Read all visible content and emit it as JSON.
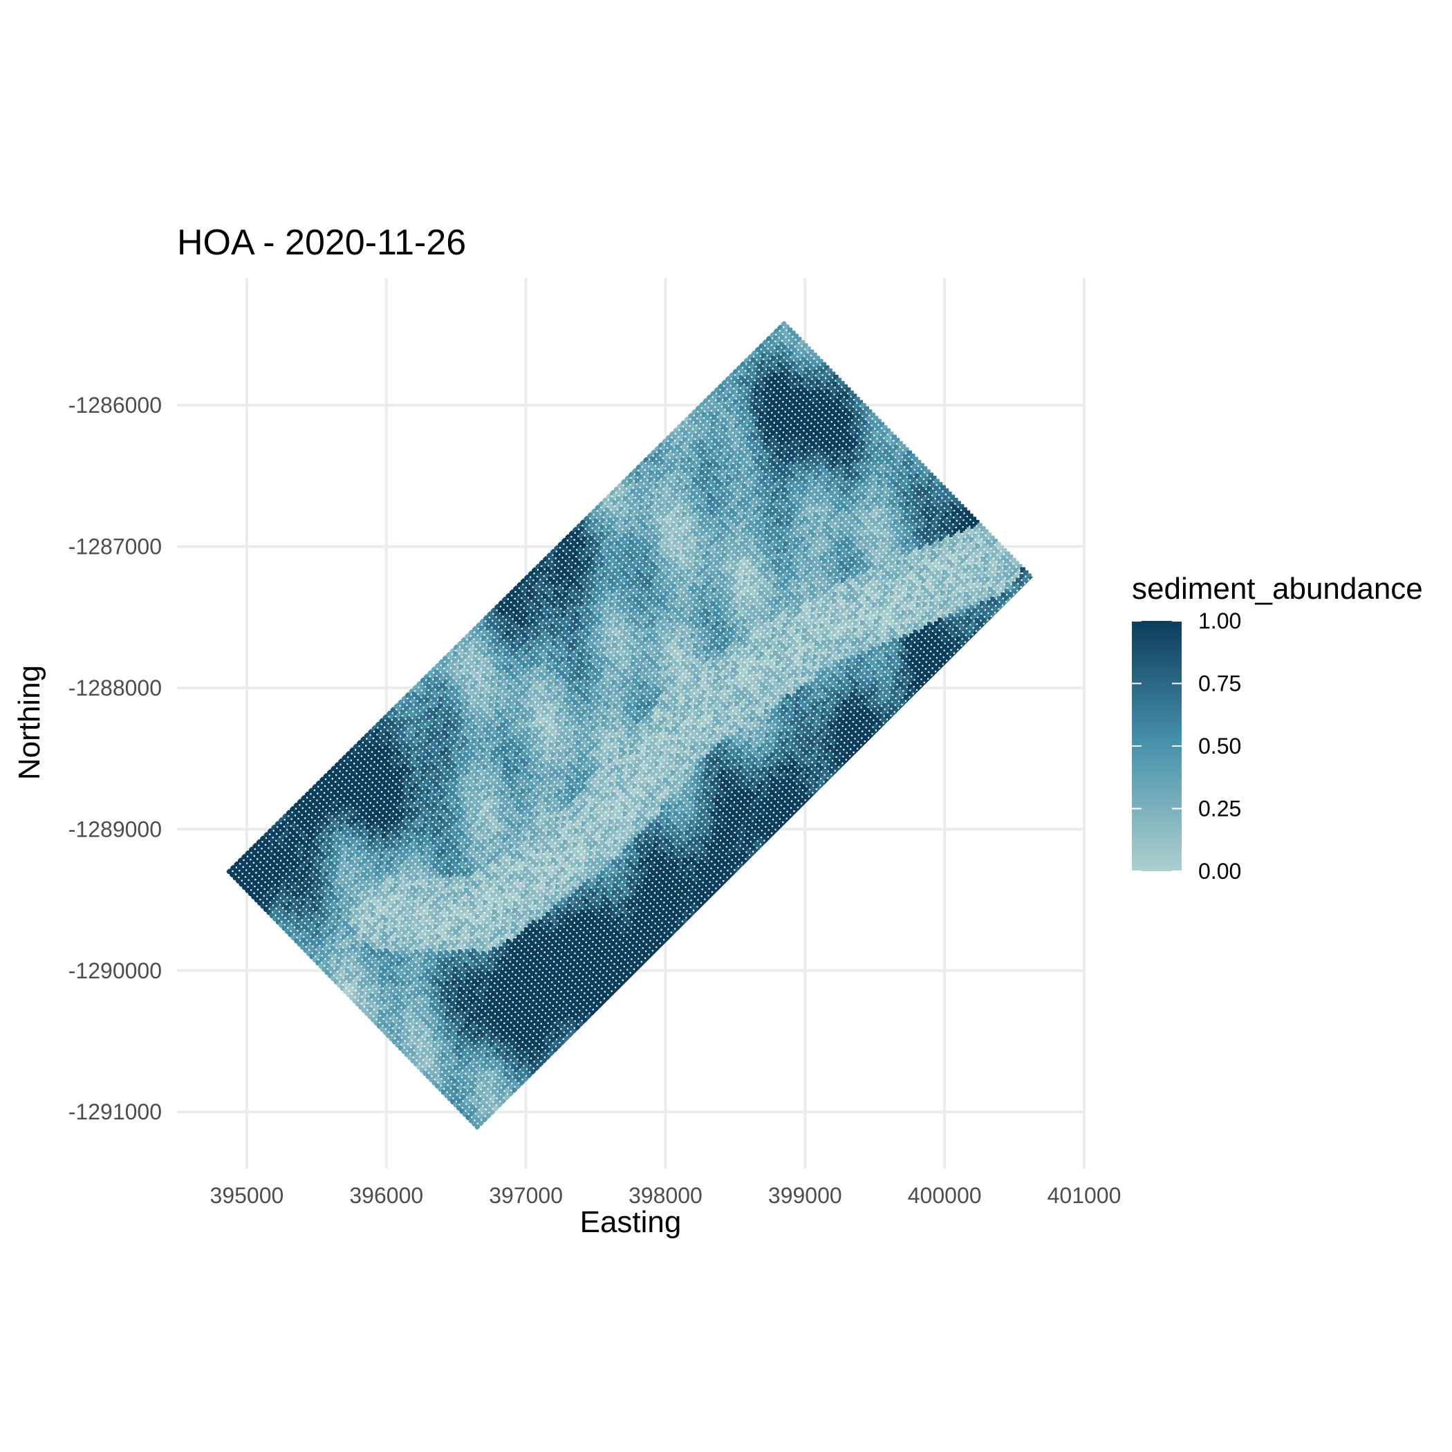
{
  "chart_data": {
    "type": "heatmap",
    "title": "HOA - 2020-11-26",
    "xlabel": "Easting",
    "ylabel": "Northing",
    "xlim": [
      394500,
      401000
    ],
    "ylim": [
      -1291400,
      -1285100
    ],
    "x_ticks": [
      395000,
      396000,
      397000,
      398000,
      399000,
      400000,
      401000
    ],
    "x_tick_labels": [
      "395000",
      "396000",
      "397000",
      "398000",
      "399000",
      "400000",
      "401000"
    ],
    "y_ticks": [
      -1286000,
      -1287000,
      -1288000,
      -1289000,
      -1290000,
      -1291000
    ],
    "y_tick_labels": [
      "-1286000",
      "-1287000",
      "-1288000",
      "-1289000",
      "-1290000",
      "-1291000"
    ],
    "grid": true,
    "legend": {
      "title": "sediment_abundance",
      "position": "right",
      "breaks": [
        1.0,
        0.75,
        0.5,
        0.25,
        0.0
      ],
      "labels": [
        "1.00",
        "0.75",
        "0.50",
        "0.25",
        "0.00"
      ],
      "range": [
        0,
        1
      ]
    },
    "colors": {
      "low": "#aecfcf",
      "mid": "#4a93ad",
      "high": "#0c3d5c"
    },
    "raster_extent": {
      "corners": [
        {
          "x": 394850,
          "y": -1289300
        },
        {
          "x": 398850,
          "y": -1285400
        },
        {
          "x": 400700,
          "y": -1287150
        },
        {
          "x": 396650,
          "y": -1291130
        }
      ]
    },
    "features": {
      "valley_centerline": [
        {
          "x": 396000,
          "y": -1289600
        },
        {
          "x": 396700,
          "y": -1289600
        },
        {
          "x": 397500,
          "y": -1289000
        },
        {
          "x": 398200,
          "y": -1288200
        },
        {
          "x": 399100,
          "y": -1287600
        },
        {
          "x": 400300,
          "y": -1287100
        }
      ],
      "dark_zones": [
        {
          "x": 396900,
          "y": -1290200,
          "value": 0.92
        },
        {
          "x": 397400,
          "y": -1290000,
          "value": 0.95
        },
        {
          "x": 398000,
          "y": -1289600,
          "value": 0.9
        },
        {
          "x": 398600,
          "y": -1289000,
          "value": 0.88
        },
        {
          "x": 399300,
          "y": -1288500,
          "value": 0.82
        },
        {
          "x": 400000,
          "y": -1287900,
          "value": 0.9
        },
        {
          "x": 400300,
          "y": -1286900,
          "value": 0.97
        },
        {
          "x": 399000,
          "y": -1286100,
          "value": 0.98
        },
        {
          "x": 396000,
          "y": -1288600,
          "value": 0.9
        },
        {
          "x": 395300,
          "y": -1288700,
          "value": 0.85
        },
        {
          "x": 397100,
          "y": -1287200,
          "value": 0.92
        },
        {
          "x": 395000,
          "y": -1289400,
          "value": 0.9
        }
      ]
    }
  }
}
